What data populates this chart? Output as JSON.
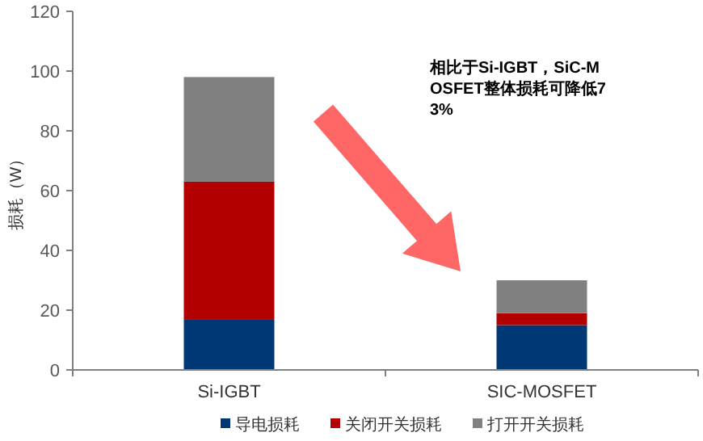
{
  "chart_data": {
    "type": "bar",
    "stacked": true,
    "ylabel": "损耗（W）",
    "categories": [
      "Si-IGBT",
      "SIC-MOSFET"
    ],
    "series": [
      {
        "name": "导电损耗",
        "color": "#003876",
        "values": [
          17,
          15
        ]
      },
      {
        "name": "关闭开关损耗",
        "color": "#b20000",
        "values": [
          46,
          4
        ]
      },
      {
        "name": "打开开关损耗",
        "color": "#808080",
        "values": [
          35,
          11
        ]
      }
    ],
    "ylim": [
      0,
      120
    ],
    "yticks": [
      0,
      20,
      40,
      60,
      80,
      100,
      120
    ],
    "grid": false,
    "legend": "bottom",
    "annotations": [
      "相比于Si-IGBT，SiC-MOSFET整体损耗可降低73%"
    ]
  }
}
